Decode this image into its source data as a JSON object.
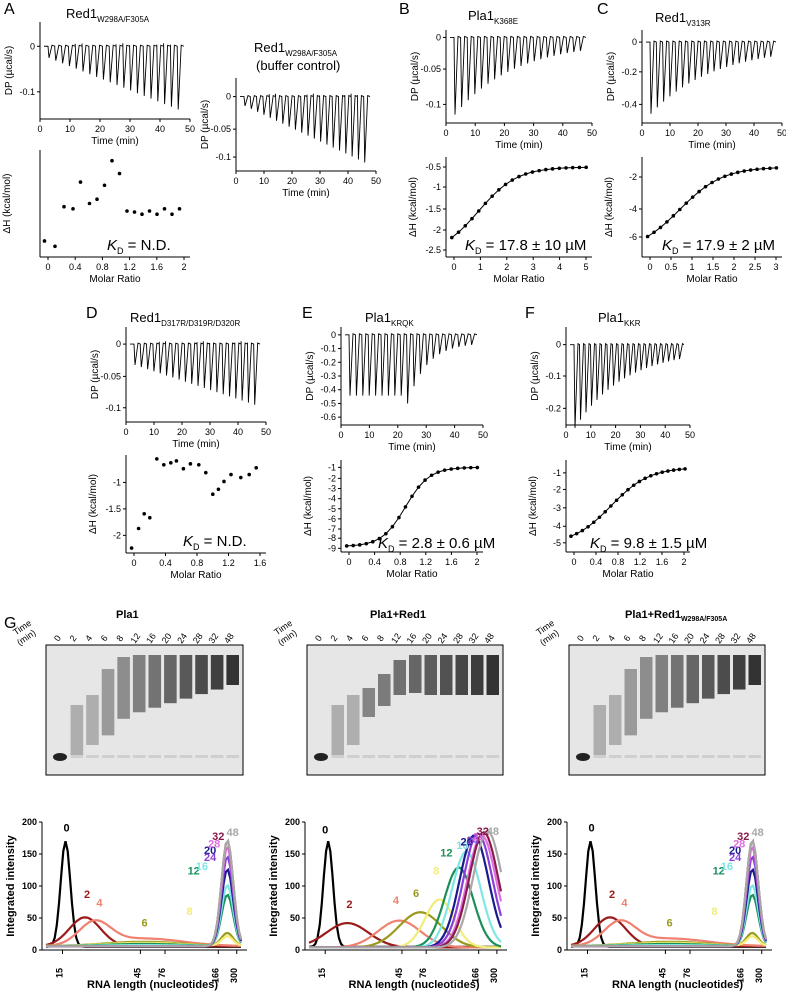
{
  "panels": {
    "A": {
      "letter": "A",
      "title1_main": "Red1",
      "title1_sub": "W298A/F305A",
      "title2_main": "Red1",
      "title2_sub": "W298A/F305A",
      "title2_line2": "(buffer control)",
      "dp_ylabel": "DP (µcal/s)",
      "time_xlabel": "Time (min)",
      "dh_ylabel": "ΔH (kcal/mol)",
      "molar_xlabel": "Molar Ratio",
      "kd_k": "K",
      "kd_sub": "D",
      "kd_value": " = N.D.",
      "dp_yticks": [
        "0",
        "-0.1"
      ],
      "dp_xticks": [
        "0",
        "10",
        "20",
        "30",
        "40",
        "50"
      ],
      "dp2_yticks": [
        "0",
        "-0.05",
        "-0.1"
      ],
      "dp2_xticks": [
        "0",
        "10",
        "20",
        "30",
        "40",
        "50"
      ],
      "dh_xticks": [
        "0",
        "0.4",
        "0.8",
        "1.2",
        "1.6",
        "2"
      ]
    },
    "B": {
      "letter": "B",
      "title_main": "Pla1",
      "title_sub": "K368E",
      "dp_ylabel": "DP (µcal/s)",
      "time_xlabel": "Time (min)",
      "dh_ylabel": "ΔH (kcal/mol)",
      "molar_xlabel": "Molar Ratio",
      "kd_k": "K",
      "kd_sub": "D",
      "kd_value": " = 17.8 ± 10 µM",
      "dp_yticks": [
        "0",
        "-0.05",
        "-0.1"
      ],
      "dp_xticks": [
        "0",
        "10",
        "20",
        "30",
        "40",
        "50"
      ],
      "dh_yticks": [
        "-0.5",
        "-1",
        "-1.5",
        "-2",
        "-2.5"
      ],
      "dh_xticks": [
        "0",
        "1",
        "2",
        "3",
        "4",
        "5"
      ]
    },
    "C": {
      "letter": "C",
      "title_main": "Red1",
      "title_sub": "V313R",
      "dp_ylabel": "DP (µcal/s)",
      "time_xlabel": "Time (min)",
      "dh_ylabel": "ΔH (kcal/mol)",
      "molar_xlabel": "Molar Ratio",
      "kd_k": "K",
      "kd_sub": "D",
      "kd_value": " = 17.9 ± 2 µM",
      "dp_yticks": [
        "0",
        "-0.2",
        "-0.4"
      ],
      "dp_xticks": [
        "0",
        "10",
        "20",
        "30",
        "40",
        "50"
      ],
      "dh_yticks": [
        "-2",
        "-4",
        "-6"
      ],
      "dh_xticks": [
        "0",
        "0.5",
        "1",
        "1.5",
        "2",
        "2.5",
        "3"
      ]
    },
    "D": {
      "letter": "D",
      "title_main": "Red1",
      "title_sub": "D317R/D319R/D320R",
      "dp_ylabel": "DP (µcal/s)",
      "time_xlabel": "Time (min)",
      "dh_ylabel": "ΔH (kcal/mol)",
      "molar_xlabel": "Molar Ratio",
      "kd_k": "K",
      "kd_sub": "D",
      "kd_value": " = N.D.",
      "dp_yticks": [
        "0",
        "-0.05",
        "-0.1"
      ],
      "dp_xticks": [
        "0",
        "10",
        "20",
        "30",
        "40",
        "50"
      ],
      "dh_yticks": [
        "-1",
        "-1.5",
        "-2"
      ],
      "dh_xticks": [
        "0",
        "0.4",
        "0.8",
        "1.2",
        "1.6"
      ]
    },
    "E": {
      "letter": "E",
      "title_main": "Pla1",
      "title_sub": "KRQK",
      "dp_ylabel": "DP (µcal/s)",
      "time_xlabel": "Time (min)",
      "dh_ylabel": "ΔH (kcal/mol)",
      "molar_xlabel": "Molar Ratio",
      "kd_k": "K",
      "kd_sub": "D",
      "kd_value": " = 2.8 ± 0.6 µM",
      "dp_yticks": [
        "0",
        "-0.1",
        "-0.2",
        "-0.3",
        "-0.4",
        "-0.5",
        "-0.6"
      ],
      "dp_xticks": [
        "0",
        "10",
        "20",
        "30",
        "40",
        "50"
      ],
      "dh_yticks": [
        "-1",
        "-2",
        "-3",
        "-4",
        "-5",
        "-6",
        "-7",
        "-8",
        "-9"
      ],
      "dh_xticks": [
        "0",
        "0.4",
        "0.8",
        "1.2",
        "1.6",
        "2"
      ]
    },
    "F": {
      "letter": "F",
      "title_main": "Pla1",
      "title_sub": "KKR",
      "dp_ylabel": "DP (µcal/s)",
      "time_xlabel": "Time (min)",
      "dh_ylabel": "ΔH (kcal/mol)",
      "molar_xlabel": "Molar Ratio",
      "kd_k": "K",
      "kd_sub": "D",
      "kd_value": " = 9.8 ± 1.5 µM",
      "dp_yticks": [
        "0",
        "-0.1",
        "-0.2"
      ],
      "dp_xticks": [
        "0",
        "10",
        "20",
        "30",
        "40",
        "50"
      ],
      "dh_yticks": [
        "-1",
        "-2",
        "-3",
        "-4",
        "-5"
      ],
      "dh_xticks": [
        "0",
        "0.4",
        "0.8",
        "1.2",
        "1.6",
        "2"
      ]
    },
    "G": {
      "letter": "G",
      "time_label": [
        "Time",
        "(min)"
      ],
      "lanes": [
        "0",
        "2",
        "4",
        "6",
        "8",
        "12",
        "16",
        "20",
        "24",
        "28",
        "32",
        "48"
      ],
      "gel_titles": [
        {
          "main": "Pla1",
          "sub": ""
        },
        {
          "main": "Pla1+Red1",
          "sub": ""
        },
        {
          "main": "Pla1+Red1",
          "sub": "W298A/F305A"
        }
      ],
      "trace_ylabel": "Integrated intensity",
      "trace_xlabel": "RNA length (nucleotides)",
      "trace_yticks": [
        "0",
        "50",
        "100",
        "150",
        "200"
      ],
      "trace_xticks": [
        "15",
        "45",
        "76",
        "166",
        "300"
      ]
    }
  },
  "lane_colors": {
    "0": "#000000",
    "2": "#9b1a1a",
    "4": "#f08070",
    "6": "#9a9a1a",
    "8": "#f2ec78",
    "12": "#1a8f5a",
    "16": "#7fe6e6",
    "20": "#1a1a8f",
    "24": "#8a3fd6",
    "28": "#e070e0",
    "32": "#8a1a4a",
    "48": "#a8a8a8"
  }
}
